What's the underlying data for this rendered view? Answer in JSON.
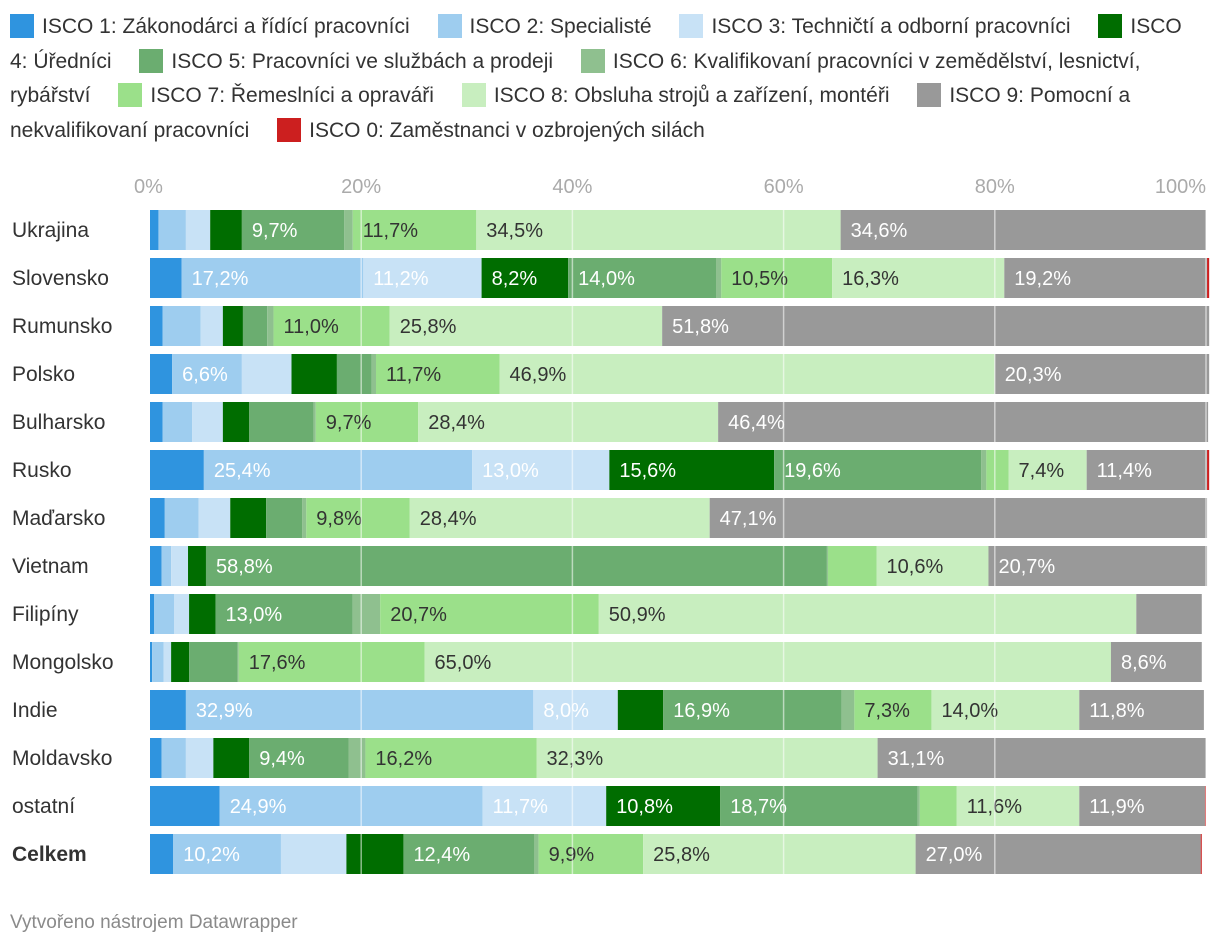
{
  "chart_data": {
    "type": "bar",
    "orientation": "horizontal",
    "stacked": true,
    "axis": {
      "ticks": [
        "0%",
        "20%",
        "40%",
        "60%",
        "80%",
        "100%"
      ],
      "xlim": [
        0,
        100
      ],
      "grid": true
    },
    "series": [
      {
        "key": "s1",
        "name": "ISCO 1: Zákonodárci a řídící pracovníci",
        "color": "#2f94df",
        "label_color": "#ffffff"
      },
      {
        "key": "s2",
        "name": "ISCO 2: Specialisté",
        "color": "#9ecdef",
        "label_color": "#ffffff"
      },
      {
        "key": "s3",
        "name": "ISCO 3: Techničtí a odborní pracovníci",
        "color": "#c8e2f6",
        "label_color": "#ffffff"
      },
      {
        "key": "s4",
        "name": "ISCO 4: Úředníci",
        "color": "#006d00",
        "label_color": "#ffffff"
      },
      {
        "key": "s5",
        "name": "ISCO 5: Pracovníci ve službách a prodeji",
        "color": "#6bad70",
        "label_color": "#ffffff"
      },
      {
        "key": "s6",
        "name": "ISCO 6: Kvalifikovaní pracovníci v zemědělství, lesnictví, rybářství",
        "color": "#8fc08f",
        "label_color": "#ffffff"
      },
      {
        "key": "s7",
        "name": "ISCO 7: Řemeslníci a opraváři",
        "color": "#9be08a",
        "label_color": "#333333"
      },
      {
        "key": "s8",
        "name": "ISCO 8: Obsluha strojů a zařízení, montéři",
        "color": "#c8eebf",
        "label_color": "#333333"
      },
      {
        "key": "s9",
        "name": "ISCO 9: Pomocní a nekvalifikovaní pracovníci",
        "color": "#999999",
        "label_color": "#ffffff"
      },
      {
        "key": "s0",
        "name": "ISCO 0: Zaměstnanci v ozbrojených silách",
        "color": "#cc1f1f",
        "label_color": "#ffffff"
      }
    ],
    "rows": [
      {
        "category": "Ukrajina",
        "bold": false,
        "values": [
          0.8,
          2.6,
          2.3,
          3.0,
          9.7,
          0.8,
          11.7,
          34.5,
          34.6,
          0.0
        ],
        "labels": [
          "",
          "",
          "",
          "",
          "9,7%",
          "",
          "11,7%",
          "34,5%",
          "34,6%",
          ""
        ]
      },
      {
        "category": "Slovensko",
        "bold": false,
        "values": [
          3.0,
          17.2,
          11.2,
          8.2,
          14.0,
          0.5,
          10.5,
          16.3,
          19.2,
          0.2
        ],
        "labels": [
          "",
          "17,2%",
          "11,2%",
          "8,2%",
          "14,0%",
          "",
          "10,5%",
          "16,3%",
          "19,2%",
          ""
        ]
      },
      {
        "category": "Rumunsko",
        "bold": false,
        "values": [
          1.2,
          3.6,
          2.1,
          1.9,
          2.3,
          0.6,
          11.0,
          25.8,
          51.8,
          0.0
        ],
        "labels": [
          "",
          "",
          "",
          "",
          "",
          "",
          "11,0%",
          "25,8%",
          "51,8%",
          ""
        ]
      },
      {
        "category": "Polsko",
        "bold": false,
        "values": [
          2.1,
          6.6,
          4.7,
          4.3,
          3.3,
          0.4,
          11.7,
          46.9,
          20.3,
          0.0
        ],
        "labels": [
          "",
          "6,6%",
          "",
          "",
          "",
          "",
          "11,7%",
          "46,9%",
          "20,3%",
          ""
        ]
      },
      {
        "category": "Bulharsko",
        "bold": false,
        "values": [
          1.2,
          2.8,
          2.9,
          2.5,
          6.1,
          0.2,
          9.7,
          28.4,
          46.4,
          0.0
        ],
        "labels": [
          "",
          "",
          "",
          "",
          "",
          "",
          "9,7%",
          "28,4%",
          "46,4%",
          ""
        ]
      },
      {
        "category": "Rusko",
        "bold": false,
        "values": [
          5.1,
          25.4,
          13.0,
          15.6,
          19.6,
          0.5,
          2.1,
          7.4,
          11.4,
          0.2
        ],
        "labels": [
          "",
          "25,4%",
          "13,0%",
          "15,6%",
          "19,6%",
          "",
          "",
          "7,4%",
          "11,4%",
          ""
        ]
      },
      {
        "category": "Maďarsko",
        "bold": false,
        "values": [
          1.4,
          3.2,
          3.0,
          3.4,
          3.4,
          0.4,
          9.8,
          28.4,
          47.1,
          0.0
        ],
        "labels": [
          "",
          "",
          "",
          "",
          "",
          "",
          "9,8%",
          "28,4%",
          "47,1%",
          ""
        ]
      },
      {
        "category": "Vietnam",
        "bold": false,
        "values": [
          1.1,
          0.9,
          1.6,
          1.7,
          58.8,
          0.1,
          4.6,
          10.6,
          20.7,
          0.0
        ],
        "labels": [
          "",
          "",
          "",
          "",
          "58,8%",
          "",
          "",
          "10,6%",
          "20,7%",
          ""
        ]
      },
      {
        "category": "Filipíny",
        "bold": false,
        "values": [
          0.4,
          1.9,
          1.4,
          2.5,
          13.0,
          2.6,
          20.7,
          50.9,
          6.2,
          0.0
        ],
        "labels": [
          "",
          "",
          "",
          "",
          "13,0%",
          "",
          "20,7%",
          "50,9%",
          "",
          ""
        ]
      },
      {
        "category": "Mongolsko",
        "bold": false,
        "values": [
          0.2,
          1.1,
          0.7,
          1.7,
          4.6,
          0.1,
          17.6,
          65.0,
          8.6,
          0.0
        ],
        "labels": [
          "",
          "",
          "",
          "",
          "",
          "",
          "17,6%",
          "65,0%",
          "8,6%",
          ""
        ]
      },
      {
        "category": "Indie",
        "bold": false,
        "values": [
          3.4,
          32.9,
          8.0,
          4.3,
          16.9,
          1.2,
          7.3,
          14.0,
          11.8,
          0.0
        ],
        "labels": [
          "",
          "32,9%",
          "8,0%",
          "",
          "16,9%",
          "",
          "7,3%",
          "14,0%",
          "11,8%",
          ""
        ]
      },
      {
        "category": "Moldavsko",
        "bold": false,
        "values": [
          1.1,
          2.3,
          2.6,
          3.4,
          9.4,
          1.6,
          16.2,
          32.3,
          31.1,
          0.0
        ],
        "labels": [
          "",
          "",
          "",
          "",
          "9,4%",
          "",
          "16,2%",
          "32,3%",
          "31,1%",
          ""
        ]
      },
      {
        "category": "ostatní",
        "bold": false,
        "values": [
          6.6,
          24.9,
          11.7,
          10.8,
          18.7,
          0.2,
          3.5,
          11.6,
          11.9,
          0.1
        ],
        "labels": [
          "",
          "24,9%",
          "11,7%",
          "10,8%",
          "18,7%",
          "",
          "",
          "11,6%",
          "11,9%",
          ""
        ]
      },
      {
        "category": "Celkem",
        "bold": true,
        "values": [
          2.2,
          10.2,
          6.2,
          5.4,
          12.4,
          0.4,
          9.9,
          25.8,
          27.0,
          0.1
        ],
        "labels": [
          "",
          "10,2%",
          "",
          "",
          "12,4%",
          "",
          "9,9%",
          "25,8%",
          "27,0%",
          ""
        ]
      }
    ]
  },
  "footer": {
    "credit": "Vytvořeno nástrojem Datawrapper"
  }
}
